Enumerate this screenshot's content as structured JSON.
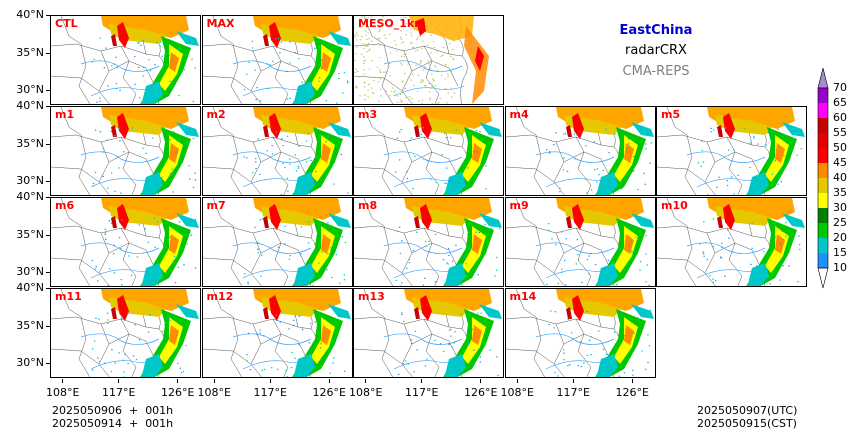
{
  "header": {
    "region": "EastChina",
    "variable": "radarCRX",
    "system": "CMA-REPS"
  },
  "colors": {
    "region": "#0000cc",
    "variable": "#000000",
    "system": "#808080",
    "panel_label": "#ff0000"
  },
  "panels": [
    {
      "label": "CTL"
    },
    {
      "label": "MAX"
    },
    {
      "label": "MESO_1km"
    },
    {
      "label": "m1"
    },
    {
      "label": "m2"
    },
    {
      "label": "m3"
    },
    {
      "label": "m4"
    },
    {
      "label": "m5"
    },
    {
      "label": "m6"
    },
    {
      "label": "m7"
    },
    {
      "label": "m8"
    },
    {
      "label": "m9"
    },
    {
      "label": "m10"
    },
    {
      "label": "m11"
    },
    {
      "label": "m12"
    },
    {
      "label": "m13"
    },
    {
      "label": "m14"
    }
  ],
  "axes": {
    "lat_ticks": [
      "40°N",
      "35°N",
      "30°N"
    ],
    "lon_ticks": [
      "108°E",
      "117°E",
      "126°E"
    ]
  },
  "colorbar": {
    "levels": [
      "10",
      "15",
      "20",
      "25",
      "30",
      "35",
      "40",
      "45",
      "50",
      "55",
      "60",
      "65",
      "70"
    ],
    "colors": [
      "#1e90ff",
      "#00c8c8",
      "#00c800",
      "#008000",
      "#ffff00",
      "#e6c800",
      "#ff8c00",
      "#ff0000",
      "#e60000",
      "#c80000",
      "#ff00ff",
      "#9900cc",
      "#a78bd6"
    ],
    "extend": "both"
  },
  "footer": {
    "init_utc": "2025050906  +  001h",
    "init_cst": "2025050914  +  001h",
    "valid_utc": "2025050907(UTC)",
    "valid_cst": "2025050915(CST)"
  }
}
